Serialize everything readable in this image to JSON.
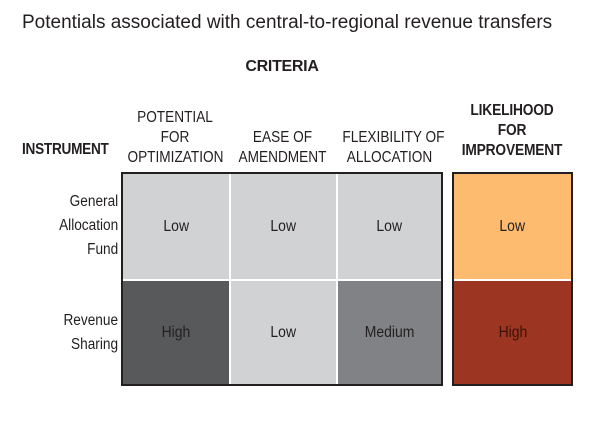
{
  "title": "Potentials associated with central-to-regional revenue transfers",
  "criteria_label": "CRITERIA",
  "instrument_label": "INSTRUMENT",
  "columns": [
    {
      "lines": [
        "POTENTIAL",
        "FOR",
        "OPTIMIZATION"
      ]
    },
    {
      "lines": [
        "EASE OF",
        "AMENDMENT"
      ]
    },
    {
      "lines": [
        "FLEXIBILITY OF",
        "ALLOCATION"
      ]
    }
  ],
  "likelihood": {
    "lines": [
      "LIKELIHOOD",
      "FOR",
      "IMPROVEMENT"
    ]
  },
  "rows": [
    {
      "label_lines": [
        "General",
        "Allocation",
        "Fund"
      ],
      "cells": [
        {
          "text": "Low",
          "bg": "#d1d2d4",
          "fg": "#231f20"
        },
        {
          "text": "Low",
          "bg": "#d1d2d4",
          "fg": "#231f20"
        },
        {
          "text": "Low",
          "bg": "#d1d2d4",
          "fg": "#231f20"
        }
      ],
      "likelihood": {
        "text": "Low",
        "bg": "#fdbb6f",
        "fg": "#231f20"
      }
    },
    {
      "label_lines": [
        "Revenue",
        "Sharing"
      ],
      "cells": [
        {
          "text": "High",
          "bg": "#58595b",
          "fg": "#231f20"
        },
        {
          "text": "Low",
          "bg": "#d1d2d4",
          "fg": "#231f20"
        },
        {
          "text": "Medium",
          "bg": "#808285",
          "fg": "#231f20"
        }
      ],
      "likelihood": {
        "text": "High",
        "bg": "#9c3522",
        "fg": "#3b1208"
      }
    }
  ]
}
